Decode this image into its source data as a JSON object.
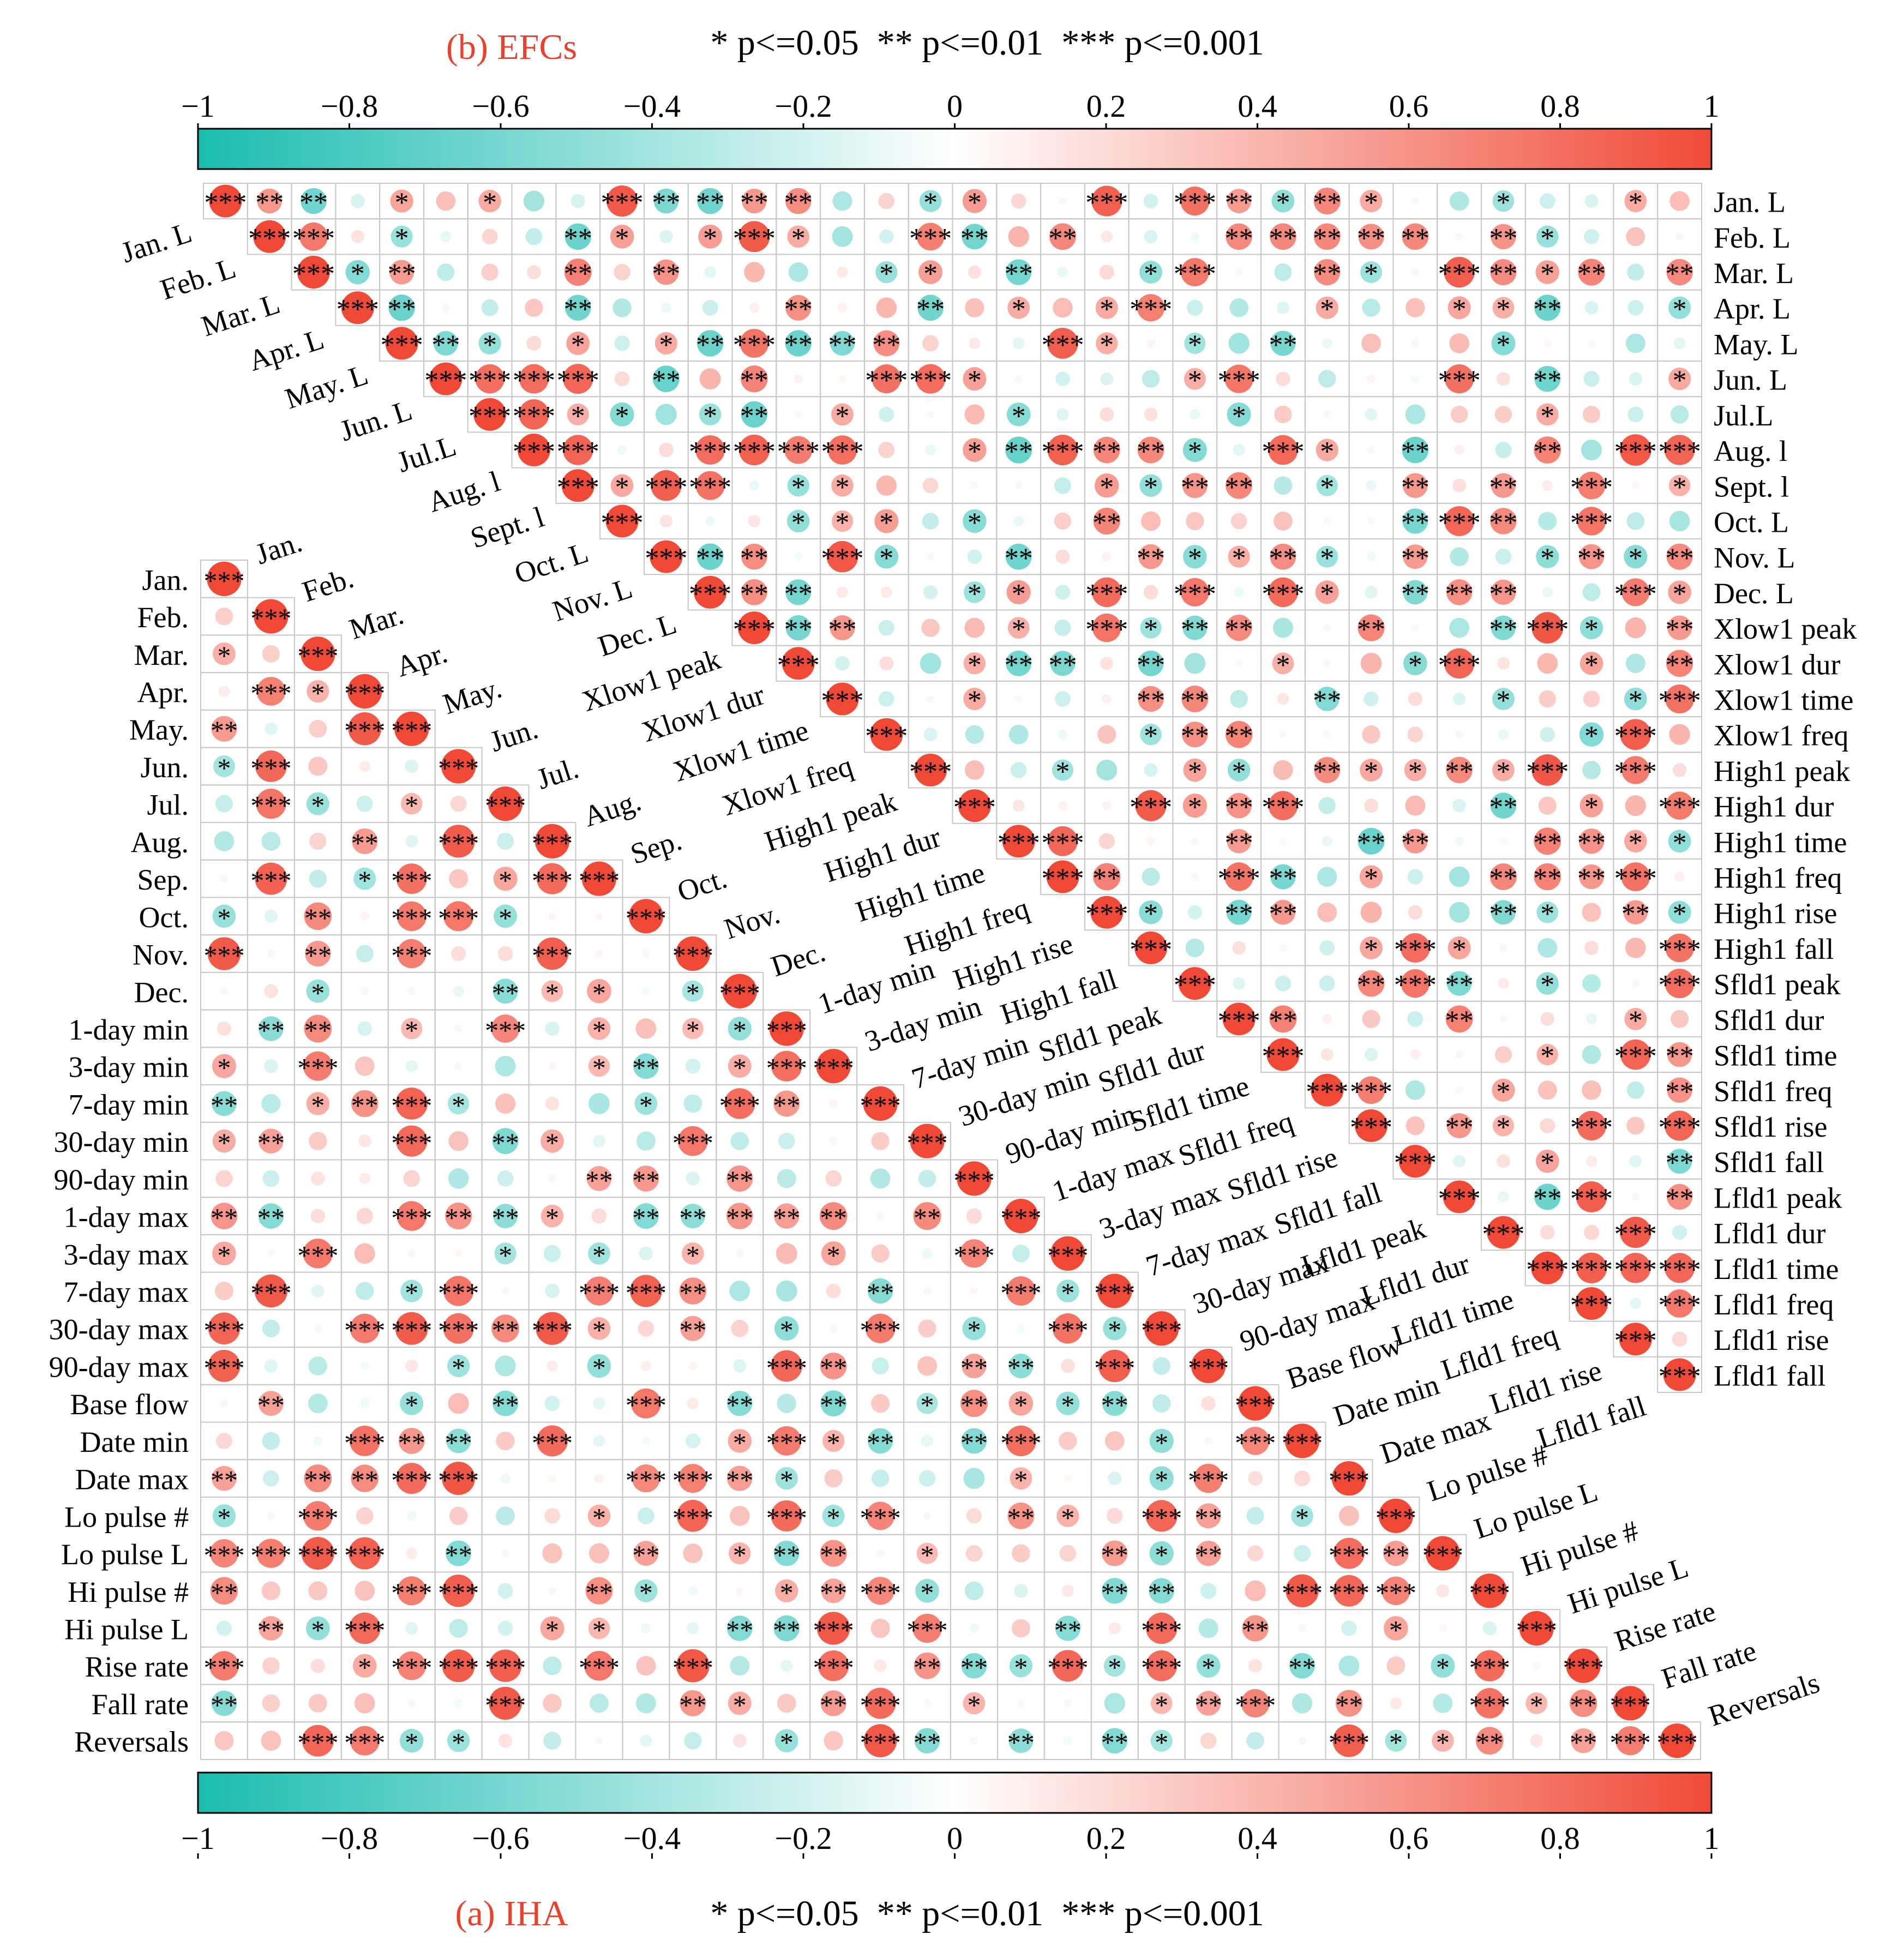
{
  "chart_data": [
    {
      "type": "heatmap",
      "panel": "(a) IHA",
      "title": "(a) IHA",
      "significance_legend": "* p<=0.05  ** p<=0.01  *** p<=0.001",
      "colorbar": {
        "ticks": [
          "−1",
          "−0.8",
          "−0.6",
          "−0.4",
          "−0.2",
          "0",
          "0.2",
          "0.4",
          "0.6",
          "0.8",
          "1"
        ],
        "negative_color": "#1bbcb0",
        "zero_color": "#ffffff",
        "positive_color": "#f04a37"
      },
      "variables": [
        "Jan.",
        "Feb.",
        "Mar.",
        "Apr.",
        "May.",
        "Jun.",
        "Jul.",
        "Aug.",
        "Sep.",
        "Oct.",
        "Nov.",
        "Dec.",
        "1-day min",
        "3-day min",
        "7-day min",
        "30-day min",
        "90-day min",
        "1-day max",
        "3-day max",
        "7-day max",
        "30-day max",
        "90-day max",
        "Base flow",
        "Date min",
        "Date max",
        "Lo pulse #",
        "Lo pulse L",
        "Hi pulse #",
        "Hi pulse L",
        "Rise rate",
        "Fall rate",
        "Reversals"
      ],
      "diagonal_labels": [
        "Jan.",
        "Feb.",
        "Mar.",
        "Apr.",
        "May.",
        "Jun.",
        "Jul.",
        "Aug.",
        "Sep.",
        "Oct.",
        "Nov.",
        "Dec.",
        "1-day min",
        "3-day min",
        "7-day min",
        "30-day min",
        "90-day min",
        "1-day max",
        "3-day max",
        "7-day max",
        "30-day max",
        "90-day max",
        "Base flow",
        "Date min",
        "Date max",
        "Lo pulse #",
        "Lo pulse L",
        "Hi pulse #",
        "Hi pulse L",
        "Rise rate",
        "Fall rate",
        "Reversals"
      ],
      "matrix_shape": "lower-triangle, circles sized and coloured by Pearson r"
    },
    {
      "type": "heatmap",
      "panel": "(b) EFCs",
      "title": "(b) EFCs",
      "significance_legend": "* p<=0.05  ** p<=0.01  *** p<=0.001",
      "colorbar": {
        "ticks": [
          "−1",
          "−0.8",
          "−0.6",
          "−0.4",
          "−0.2",
          "0",
          "0.2",
          "0.4",
          "0.6",
          "0.8",
          "1"
        ],
        "negative_color": "#1bbcb0",
        "zero_color": "#ffffff",
        "positive_color": "#f04a37"
      },
      "variables": [
        "Jan. L",
        "Feb. L",
        "Mar.  L",
        "Apr.  L",
        "May. L",
        "Jun. L",
        "Jul.L",
        "Aug. l",
        "Sept. l",
        "Oct. L",
        "Nov. L",
        "Dec. L",
        "Xlow1 peak",
        "Xlow1 dur",
        "Xlow1 time",
        "Xlow1 freq",
        "High1 peak",
        "High1 dur",
        "High1 time",
        "High1 freq",
        "High1 rise",
        "High1 fall",
        "Sfld1 peak",
        "Sfld1 dur",
        "Sfld1 time",
        "Sfld1 freq",
        "Sfld1 rise",
        "Sfld1 fall",
        "Lfld1 peak",
        "Lfld1 dur",
        "Lfld1 time",
        "Lfld1 freq",
        "Lfld1 rise",
        "Lfld1 fall"
      ],
      "diagonal_labels": [
        "Jan. L",
        "Feb. L",
        "Mar.  L",
        "Apr.  L",
        "May. L",
        "Jun. L",
        "Jul.L",
        "Aug. l",
        "Sept. l",
        "Oct. L",
        "Nov. L",
        "Dec. L",
        "Xlow1 peak",
        "Xlow1 dur",
        "Xlow1 time",
        "Xlow1 freq",
        "High1 peak",
        "High1 dur",
        "High1 time",
        "High1 freq",
        "High1 rise",
        "High1 fall",
        "Sfld1 peak",
        "Sfld1 dur",
        "Sfld1 time",
        "Sfld1 freq",
        "Sfld1 rise",
        "Sfld1 fall",
        "Lfld1 peak",
        "Lfld1 dur",
        "Lfld1 time",
        "Lfld1 freq",
        "Lfld1 rise",
        "Lfld1 fall"
      ],
      "matrix_shape": "upper-triangle, circles sized and coloured by Pearson r"
    }
  ]
}
